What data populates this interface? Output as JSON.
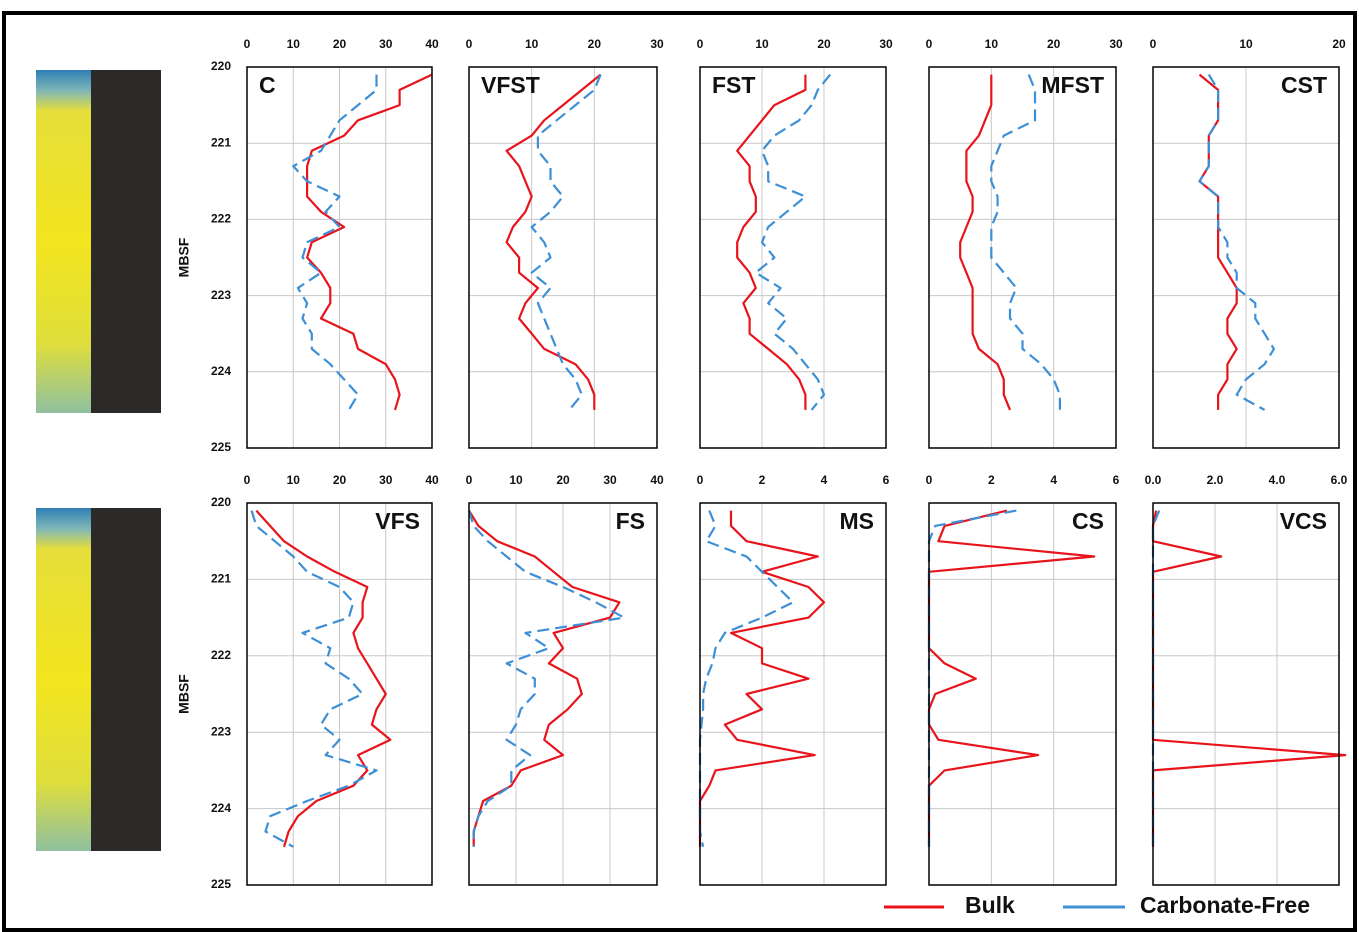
{
  "chart_data": [
    {
      "type": "line",
      "title": "C",
      "y_label": "MBSF",
      "xlim": [
        0,
        40
      ],
      "xticks": [
        0,
        10,
        20,
        30,
        40
      ],
      "ylim": [
        220,
        225
      ],
      "yticks": [
        220,
        221,
        222,
        223,
        224,
        225
      ],
      "grid": true,
      "depths": [
        220.1,
        220.3,
        220.5,
        220.7,
        220.9,
        221.1,
        221.3,
        221.5,
        221.7,
        221.9,
        222.1,
        222.3,
        222.5,
        222.7,
        222.9,
        223.1,
        223.3,
        223.5,
        223.7,
        223.9,
        224.1,
        224.3,
        224.5
      ],
      "series": [
        {
          "name": "Bulk",
          "color": "#e8141c",
          "dashed": false,
          "values": [
            40,
            33,
            33,
            24,
            21,
            14,
            13,
            13,
            13,
            16,
            21,
            14,
            13,
            16,
            18,
            18,
            16,
            23,
            24,
            30,
            32,
            33,
            32
          ]
        },
        {
          "name": "Carbonate-Free",
          "color": "#3d8fd6",
          "dashed": true,
          "values": [
            28,
            28,
            24,
            20,
            18,
            16,
            10,
            13,
            20,
            17,
            20,
            13,
            12,
            16,
            11,
            13,
            12,
            14,
            14,
            18,
            21,
            24,
            22
          ]
        }
      ]
    },
    {
      "type": "line",
      "title": "VFST",
      "xlim": [
        0,
        30
      ],
      "xticks": [
        0,
        10,
        20,
        30
      ],
      "ylim": [
        220,
        225
      ],
      "yticks": [
        220,
        221,
        222,
        223,
        224,
        225
      ],
      "grid": true,
      "depths": [
        220.1,
        220.3,
        220.5,
        220.7,
        220.9,
        221.1,
        221.3,
        221.5,
        221.7,
        221.9,
        222.1,
        222.3,
        222.5,
        222.7,
        222.9,
        223.1,
        223.3,
        223.5,
        223.7,
        223.9,
        224.1,
        224.3,
        224.5
      ],
      "series": [
        {
          "name": "Bulk",
          "color": "#e8141c",
          "dashed": false,
          "values": [
            21,
            18,
            15,
            12,
            10,
            6,
            8,
            9,
            10,
            9,
            7,
            6,
            8,
            8,
            11,
            9,
            8,
            10,
            12,
            17,
            19,
            20,
            20
          ]
        },
        {
          "name": "Carbonate-Free",
          "color": "#3d8fd6",
          "dashed": true,
          "values": [
            21,
            20,
            17,
            14,
            11,
            11,
            13,
            13,
            15,
            13,
            10,
            12,
            13,
            10,
            13,
            11,
            12,
            13,
            14,
            15,
            17,
            18,
            16
          ]
        }
      ]
    },
    {
      "type": "line",
      "title": "FST",
      "xlim": [
        0,
        30
      ],
      "xticks": [
        0,
        10,
        20,
        30
      ],
      "ylim": [
        220,
        225
      ],
      "yticks": [
        220,
        221,
        222,
        223,
        224,
        225
      ],
      "grid": true,
      "depths": [
        220.1,
        220.3,
        220.5,
        220.7,
        220.9,
        221.1,
        221.3,
        221.5,
        221.7,
        221.9,
        222.1,
        222.3,
        222.5,
        222.7,
        222.9,
        223.1,
        223.3,
        223.5,
        223.7,
        223.9,
        224.1,
        224.3,
        224.5
      ],
      "series": [
        {
          "name": "Bulk",
          "color": "#e8141c",
          "dashed": false,
          "values": [
            17,
            17,
            12,
            10,
            8,
            6,
            8,
            8,
            9,
            9,
            7,
            6,
            6,
            8,
            9,
            7,
            8,
            8,
            11,
            14,
            16,
            17,
            17
          ]
        },
        {
          "name": "Carbonate-Free",
          "color": "#3d8fd6",
          "dashed": true,
          "values": [
            21,
            19,
            18,
            16,
            12,
            10,
            11,
            11,
            17,
            14,
            11,
            10,
            12,
            9,
            13,
            11,
            14,
            12,
            15,
            17,
            19,
            20,
            18
          ]
        }
      ]
    },
    {
      "type": "line",
      "title": "MFST",
      "xlim": [
        0,
        30
      ],
      "xticks": [
        0,
        10,
        20,
        30
      ],
      "ylim": [
        220,
        225
      ],
      "yticks": [
        220,
        221,
        222,
        223,
        224,
        225
      ],
      "grid": true,
      "depths": [
        220.1,
        220.3,
        220.5,
        220.7,
        220.9,
        221.1,
        221.3,
        221.5,
        221.7,
        221.9,
        222.1,
        222.3,
        222.5,
        222.7,
        222.9,
        223.1,
        223.3,
        223.5,
        223.7,
        223.9,
        224.1,
        224.3,
        224.5
      ],
      "series": [
        {
          "name": "Bulk",
          "color": "#e8141c",
          "dashed": false,
          "values": [
            10,
            10,
            10,
            9,
            8,
            6,
            6,
            6,
            7,
            7,
            6,
            5,
            5,
            6,
            7,
            7,
            7,
            7,
            8,
            11,
            12,
            12,
            13
          ]
        },
        {
          "name": "Carbonate-Free",
          "color": "#3d8fd6",
          "dashed": true,
          "values": [
            16,
            17,
            17,
            17,
            12,
            11,
            10,
            10,
            11,
            11,
            10,
            10,
            10,
            12,
            14,
            13,
            13,
            15,
            15,
            18,
            20,
            21,
            21
          ]
        }
      ]
    },
    {
      "type": "line",
      "title": "CST",
      "xlim": [
        0,
        20
      ],
      "xticks": [
        0,
        10,
        20
      ],
      "ylim": [
        220,
        225
      ],
      "yticks": [
        220,
        221,
        222,
        223,
        224,
        225
      ],
      "grid": true,
      "depths": [
        220.1,
        220.3,
        220.5,
        220.7,
        220.9,
        221.1,
        221.3,
        221.5,
        221.7,
        221.9,
        222.1,
        222.3,
        222.5,
        222.7,
        222.9,
        223.1,
        223.3,
        223.5,
        223.7,
        223.9,
        224.1,
        224.3,
        224.5
      ],
      "series": [
        {
          "name": "Bulk",
          "color": "#e8141c",
          "dashed": false,
          "values": [
            5,
            7,
            7,
            7,
            6,
            6,
            6,
            5,
            7,
            7,
            7,
            7,
            7,
            8,
            9,
            9,
            8,
            8,
            9,
            8,
            8,
            7,
            7
          ]
        },
        {
          "name": "Carbonate-Free",
          "color": "#3d8fd6",
          "dashed": true,
          "values": [
            6,
            7,
            7,
            7,
            6,
            6,
            6,
            5,
            7,
            7,
            7,
            8,
            8,
            9,
            9,
            11,
            11,
            12,
            13,
            12,
            10,
            9,
            12
          ]
        }
      ]
    },
    {
      "type": "line",
      "title": "VFS",
      "y_label": "MBSF",
      "xlim": [
        0,
        40
      ],
      "xticks": [
        0,
        10,
        20,
        30,
        40
      ],
      "ylim": [
        220,
        225
      ],
      "yticks": [
        220,
        221,
        222,
        223,
        224,
        225
      ],
      "grid": true,
      "depths": [
        220.1,
        220.3,
        220.5,
        220.7,
        220.9,
        221.1,
        221.3,
        221.5,
        221.7,
        221.9,
        222.1,
        222.3,
        222.5,
        222.7,
        222.9,
        223.1,
        223.3,
        223.5,
        223.7,
        223.9,
        224.1,
        224.3,
        224.5
      ],
      "series": [
        {
          "name": "Bulk",
          "color": "#e8141c",
          "dashed": false,
          "values": [
            2,
            5,
            8,
            13,
            19,
            26,
            25,
            25,
            23,
            24,
            26,
            28,
            30,
            28,
            27,
            31,
            24,
            26,
            23,
            15,
            11,
            9,
            8
          ]
        },
        {
          "name": "Carbonate-Free",
          "color": "#3d8fd6",
          "dashed": true,
          "values": [
            1,
            2,
            6,
            10,
            13,
            20,
            23,
            22,
            12,
            18,
            17,
            22,
            25,
            18,
            16,
            20,
            17,
            28,
            22,
            13,
            5,
            4,
            10
          ]
        }
      ]
    },
    {
      "type": "line",
      "title": "FS",
      "xlim": [
        0,
        40
      ],
      "xticks": [
        0,
        10,
        20,
        30,
        40
      ],
      "ylim": [
        220,
        225
      ],
      "yticks": [
        220,
        221,
        222,
        223,
        224,
        225
      ],
      "grid": true,
      "depths": [
        220.1,
        220.3,
        220.5,
        220.7,
        220.9,
        221.1,
        221.3,
        221.5,
        221.7,
        221.9,
        222.1,
        222.3,
        222.5,
        222.7,
        222.9,
        223.1,
        223.3,
        223.5,
        223.7,
        223.9,
        224.1,
        224.3,
        224.5
      ],
      "series": [
        {
          "name": "Bulk",
          "color": "#e8141c",
          "dashed": false,
          "values": [
            0,
            2,
            6,
            14,
            18,
            22,
            32,
            30,
            18,
            20,
            17,
            23,
            24,
            21,
            17,
            16,
            20,
            11,
            9,
            3,
            2,
            1,
            1
          ]
        },
        {
          "name": "Carbonate-Free",
          "color": "#3d8fd6",
          "dashed": true,
          "values": [
            0,
            1,
            4,
            8,
            12,
            20,
            27,
            33,
            12,
            17,
            8,
            14,
            14,
            11,
            10,
            8,
            13,
            9,
            9,
            4,
            2,
            1,
            1
          ]
        }
      ]
    },
    {
      "type": "line",
      "title": "MS",
      "xlim": [
        0,
        6
      ],
      "xticks": [
        0,
        2,
        4,
        6
      ],
      "ylim": [
        220,
        225
      ],
      "yticks": [
        220,
        221,
        222,
        223,
        224,
        225
      ],
      "grid": true,
      "depths": [
        220.1,
        220.3,
        220.5,
        220.7,
        220.9,
        221.1,
        221.3,
        221.5,
        221.7,
        221.9,
        222.1,
        222.3,
        222.5,
        222.7,
        222.9,
        223.1,
        223.3,
        223.5,
        223.7,
        223.9,
        224.1,
        224.3,
        224.5
      ],
      "series": [
        {
          "name": "Bulk",
          "color": "#e8141c",
          "dashed": false,
          "values": [
            1.0,
            1.0,
            1.5,
            3.8,
            2.0,
            3.5,
            4.0,
            3.5,
            1.0,
            2.0,
            2.0,
            3.5,
            1.5,
            2.0,
            0.8,
            1.2,
            3.7,
            0.5,
            0.3,
            0,
            0,
            0,
            0
          ]
        },
        {
          "name": "Carbonate-Free",
          "color": "#3d8fd6",
          "dashed": true,
          "values": [
            0.3,
            0.5,
            0.2,
            1.5,
            2.0,
            2.5,
            3.0,
            2.0,
            0.8,
            0.5,
            0.4,
            0.2,
            0.1,
            0.1,
            0.05,
            0,
            0,
            0,
            0,
            0,
            0,
            0,
            0.1
          ]
        }
      ]
    },
    {
      "type": "line",
      "title": "CS",
      "xlim": [
        0,
        6
      ],
      "xticks": [
        0,
        2,
        4,
        6
      ],
      "ylim": [
        220,
        225
      ],
      "yticks": [
        220,
        221,
        222,
        223,
        224,
        225
      ],
      "grid": true,
      "depths": [
        220.1,
        220.3,
        220.5,
        220.7,
        220.9,
        221.1,
        221.3,
        221.5,
        221.7,
        221.9,
        222.1,
        222.3,
        222.5,
        222.7,
        222.9,
        223.1,
        223.3,
        223.5,
        223.7,
        223.9,
        224.1,
        224.3,
        224.5
      ],
      "series": [
        {
          "name": "Bulk",
          "color": "#e8141c",
          "dashed": false,
          "values": [
            2.5,
            0.5,
            0.3,
            5.3,
            0,
            0,
            0,
            0,
            0,
            0,
            0.5,
            1.5,
            0.2,
            0,
            0,
            0.3,
            3.5,
            0.5,
            0,
            0,
            0,
            0,
            0
          ]
        },
        {
          "name": "Carbonate-Free",
          "color": "#3d8fd6",
          "dashed": true,
          "values": [
            2.8,
            0.2,
            0,
            0,
            0,
            0,
            0,
            0,
            0,
            0,
            0,
            0,
            0,
            0,
            0,
            0,
            0,
            0,
            0,
            0,
            0,
            0,
            0
          ]
        }
      ]
    },
    {
      "type": "line",
      "title": "VCS",
      "xlim": [
        0,
        6
      ],
      "xticks": [
        {
          "value": 0,
          "label": "0.0"
        },
        {
          "value": 2,
          "label": "2.0"
        },
        {
          "value": 4,
          "label": "4.0"
        },
        {
          "value": 6,
          "label": "6.0"
        }
      ],
      "ylim": [
        220,
        225
      ],
      "yticks": [
        220,
        221,
        222,
        223,
        224,
        225
      ],
      "grid": true,
      "depths": [
        220.1,
        220.3,
        220.5,
        220.7,
        220.9,
        221.1,
        221.3,
        221.5,
        221.7,
        221.9,
        222.1,
        222.3,
        222.5,
        222.7,
        222.9,
        223.1,
        223.3,
        223.5,
        223.7,
        223.9,
        224.1,
        224.3,
        224.5
      ],
      "series": [
        {
          "name": "Bulk",
          "color": "#e8141c",
          "dashed": false,
          "values": [
            0.1,
            0,
            0,
            2.2,
            0,
            0,
            0,
            0,
            0,
            0,
            0,
            0,
            0,
            0,
            0,
            0,
            6.2,
            0,
            0,
            0,
            0,
            0,
            0
          ]
        },
        {
          "name": "Carbonate-Free",
          "color": "#3d8fd6",
          "dashed": true,
          "values": [
            0.2,
            0,
            0,
            0,
            0,
            0,
            0,
            0,
            0,
            0,
            0,
            0,
            0,
            0,
            0,
            0,
            0,
            0,
            0,
            0,
            0,
            0,
            0
          ]
        }
      ]
    }
  ]
}
